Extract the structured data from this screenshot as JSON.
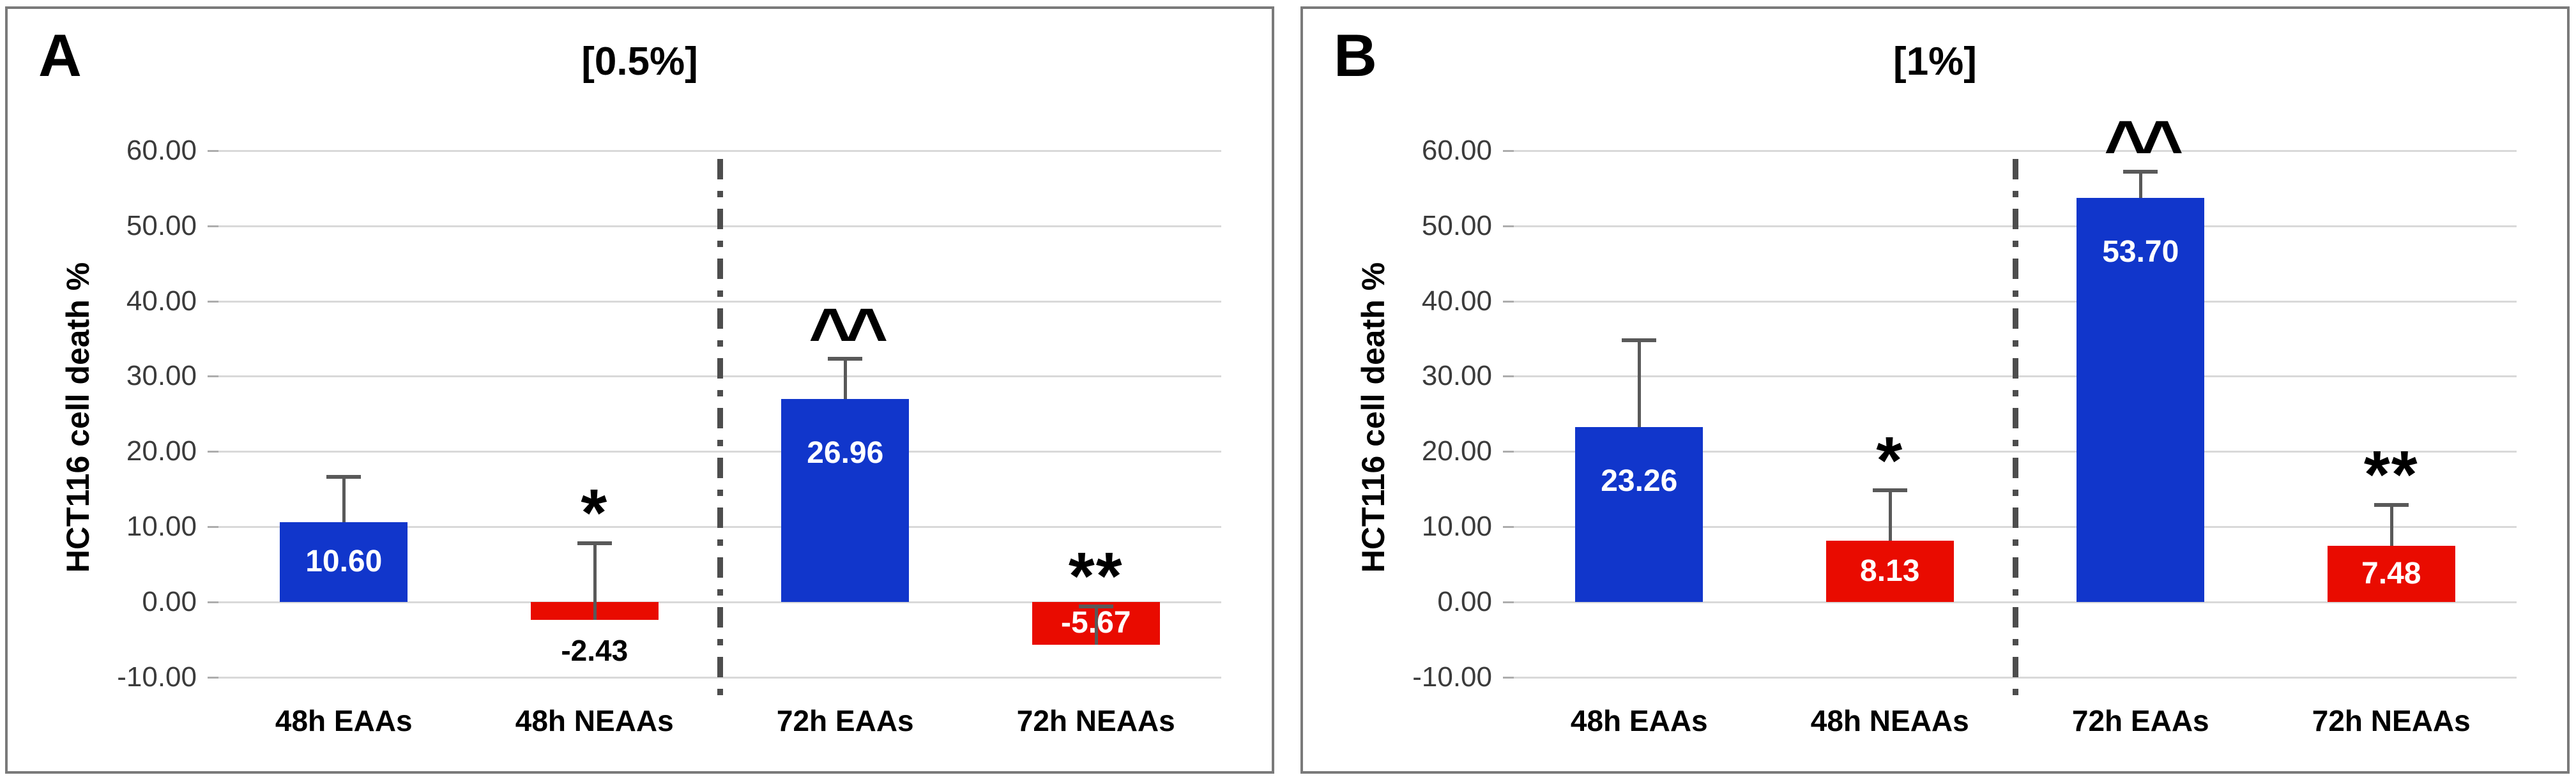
{
  "colors": {
    "bar_blue": "#1136cb",
    "bar_red": "#e90b00",
    "gridline": "#d9d9d9",
    "gridline_stub": "#adadad",
    "error_bar": "#595959",
    "divider": "#4d4d4d",
    "panel_border": "#7a7a7a",
    "tick_text": "#3b3b3b"
  },
  "chart_data": [
    {
      "type": "bar",
      "panel_label": "A",
      "title": "[0.5%]",
      "ylabel": "HCT116 cell death %",
      "xlabel": "",
      "ylim": [
        -10,
        60
      ],
      "yticks": [
        60,
        50,
        40,
        30,
        20,
        10,
        0,
        -10
      ],
      "ytick_labels": [
        "60.00",
        "50.00",
        "40.00",
        "30.00",
        "20.00",
        "10.00",
        "0.00",
        "-10.00"
      ],
      "grid": true,
      "legend": false,
      "group_divider_after": 1,
      "categories": [
        "48h EAAs",
        "48h NEAAs",
        "72h EAAs",
        "72h NEAAs"
      ],
      "values": [
        10.6,
        -2.43,
        26.96,
        -5.67
      ],
      "bars": [
        {
          "category": "48h EAAs",
          "value": 10.6,
          "label": "10.60",
          "color": "#1136cb",
          "error_top": 16.6,
          "annotation": "",
          "label_placement": "inside"
        },
        {
          "category": "48h NEAAs",
          "value": -2.43,
          "label": "-2.43",
          "color": "#e90b00",
          "error_top": 7.8,
          "annotation": "*",
          "label_placement": "below"
        },
        {
          "category": "72h EAAs",
          "value": 26.96,
          "label": "26.96",
          "color": "#1136cb",
          "error_top": 32.3,
          "annotation": "^^",
          "label_placement": "inside"
        },
        {
          "category": "72h NEAAs",
          "value": -5.67,
          "label": "-5.67",
          "color": "#e90b00",
          "error_top": -0.6,
          "annotation": "**",
          "label_placement": "inside"
        }
      ]
    },
    {
      "type": "bar",
      "panel_label": "B",
      "title": "[1%]",
      "ylabel": "HCT116 cell death %",
      "xlabel": "",
      "ylim": [
        -10,
        60
      ],
      "yticks": [
        60,
        50,
        40,
        30,
        20,
        10,
        0,
        -10
      ],
      "ytick_labels": [
        "60.00",
        "50.00",
        "40.00",
        "30.00",
        "20.00",
        "10.00",
        "0.00",
        "-10.00"
      ],
      "grid": true,
      "legend": false,
      "group_divider_after": 1,
      "categories": [
        "48h EAAs",
        "48h NEAAs",
        "72h EAAs",
        "72h NEAAs"
      ],
      "values": [
        23.26,
        8.13,
        53.7,
        7.48
      ],
      "bars": [
        {
          "category": "48h EAAs",
          "value": 23.26,
          "label": "23.26",
          "color": "#1136cb",
          "error_top": 34.8,
          "annotation": "",
          "label_placement": "inside"
        },
        {
          "category": "48h NEAAs",
          "value": 8.13,
          "label": "8.13",
          "color": "#e90b00",
          "error_top": 14.8,
          "annotation": "*",
          "label_placement": "inside"
        },
        {
          "category": "72h EAAs",
          "value": 53.7,
          "label": "53.70",
          "color": "#1136cb",
          "error_top": 57.2,
          "annotation": "^^",
          "label_placement": "inside"
        },
        {
          "category": "72h NEAAs",
          "value": 7.48,
          "label": "7.48",
          "color": "#e90b00",
          "error_top": 12.9,
          "annotation": "**",
          "label_placement": "inside"
        }
      ]
    }
  ]
}
